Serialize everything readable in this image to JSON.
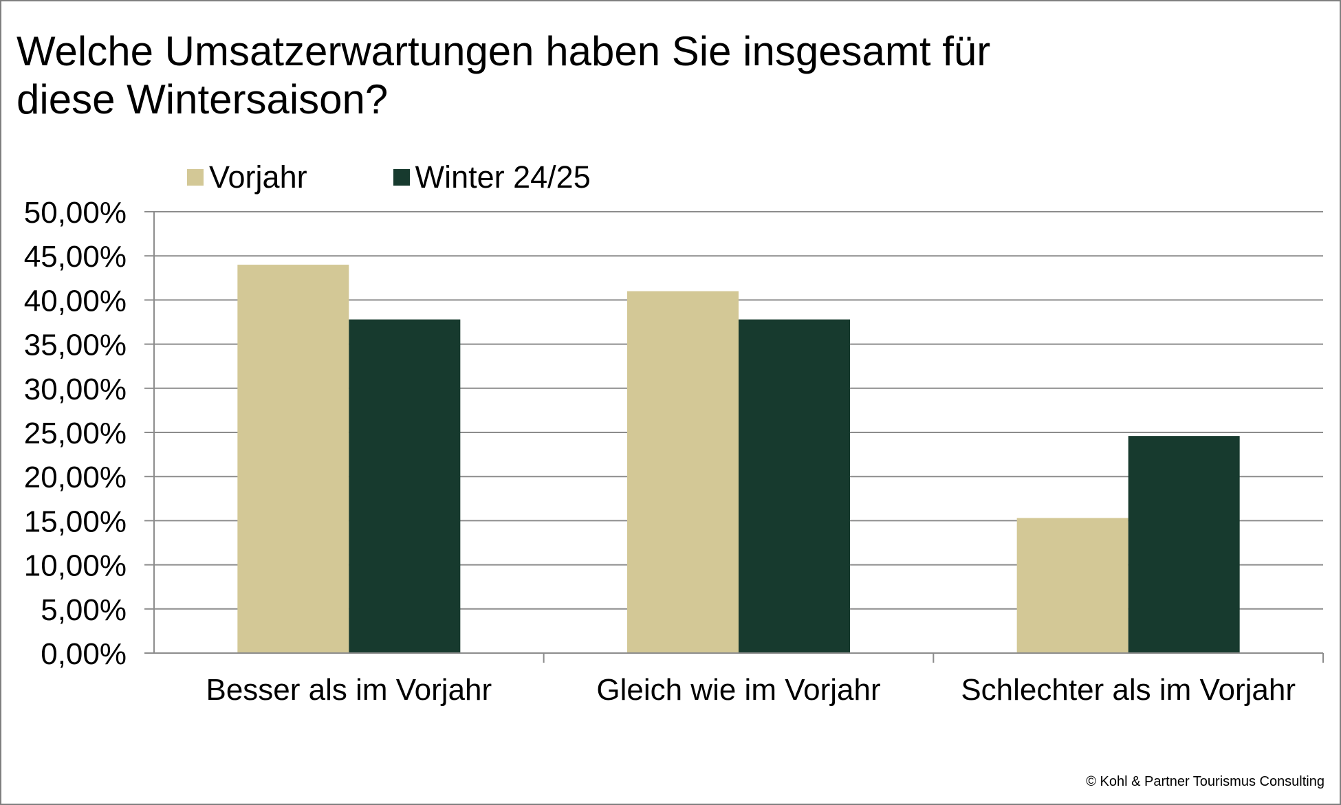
{
  "title_lines": [
    "Welche Umsatzerwartungen haben Sie insgesamt für",
    "diese Wintersaison?"
  ],
  "copyright": "© Kohl & Partner Tourismus Consulting",
  "colors": {
    "vorjahr": "#D3C896",
    "winter": "#173A2E",
    "grid": "#8c8c8c",
    "axis": "#8c8c8c"
  },
  "chart_data": {
    "type": "bar",
    "title": "Welche Umsatzerwartungen haben Sie insgesamt für diese Wintersaison?",
    "categories": [
      "Besser als im Vorjahr",
      "Gleich wie im Vorjahr",
      "Schlechter als im Vorjahr"
    ],
    "series": [
      {
        "name": "Vorjahr",
        "values": [
          44.0,
          41.0,
          15.3
        ],
        "color": "#D3C896"
      },
      {
        "name": "Winter 24/25",
        "values": [
          37.8,
          37.8,
          24.6
        ],
        "color": "#173A2E"
      }
    ],
    "ylim": [
      0,
      50
    ],
    "yticks": [
      0,
      5,
      10,
      15,
      20,
      25,
      30,
      35,
      40,
      45,
      50
    ],
    "ytick_labels": [
      "0,00%",
      "5,00%",
      "10,00%",
      "15,00%",
      "20,00%",
      "25,00%",
      "30,00%",
      "35,00%",
      "40,00%",
      "45,00%",
      "50,00%"
    ],
    "grid": true,
    "legend_position": "top-left"
  }
}
